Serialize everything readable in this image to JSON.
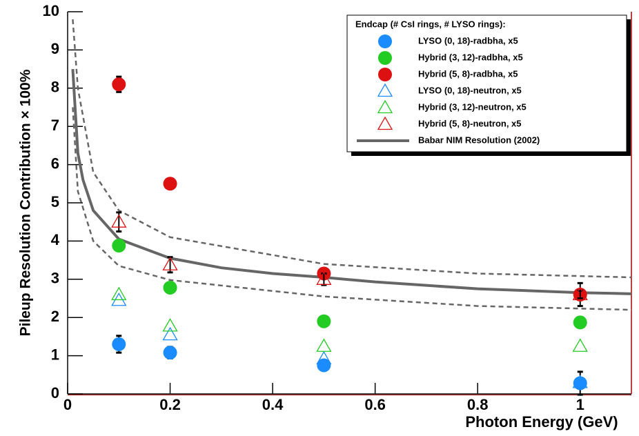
{
  "chart_data": {
    "type": "scatter",
    "x_label": "Photon Energy (GeV)",
    "y_label": "Pileup Resolution Contribution × 100%",
    "legend_title": "Endcap (# CsI rings, # LYSO rings):",
    "legend_position": "upper right",
    "x": [
      0.1,
      0.2,
      0.5,
      1
    ],
    "xlim": [
      0,
      1.1
    ],
    "xticks": [
      0,
      0.2,
      0.4,
      0.6,
      0.8,
      1
    ],
    "ylim": [
      0,
      10
    ],
    "yticks": [
      0,
      1,
      2,
      3,
      4,
      5,
      6,
      7,
      8,
      9,
      10
    ],
    "series": [
      {
        "name": "LYSO (0, 18)-radbha, x5",
        "color": "#1a8cff",
        "marker": "circle",
        "values": [
          1.3,
          1.08,
          0.75,
          0.28
        ],
        "errors": [
          0.22,
          0.15,
          0.1,
          0.3
        ]
      },
      {
        "name": "Hybrid (3, 12)-radbha, x5",
        "color": "#22cc22",
        "marker": "circle",
        "values": [
          3.88,
          2.78,
          1.9,
          1.87
        ],
        "errors": [
          0.1,
          0.1,
          0.1,
          0.1
        ]
      },
      {
        "name": "Hybrid (5, 8)-radbha, x5",
        "color": "#dd1111",
        "marker": "circle",
        "values": [
          8.1,
          5.5,
          3.15,
          2.6
        ],
        "errors": [
          0.2,
          0.1,
          0.1,
          0.3
        ]
      },
      {
        "name": "LYSO (0, 18)-neutron, x5",
        "color": "#1a8cff",
        "marker": "triangle",
        "values": [
          2.45,
          1.55,
          0.92,
          0.3
        ]
      },
      {
        "name": "Hybrid (3, 12)-neutron, x5",
        "color": "#22cc22",
        "marker": "triangle",
        "values": [
          2.6,
          1.78,
          1.25,
          1.25
        ]
      },
      {
        "name": "Hybrid (5, 8)-neutron, x5",
        "color": "#dd1111",
        "marker": "triangle",
        "values": [
          4.5,
          3.38,
          3.0,
          2.6
        ],
        "errors": [
          0.25,
          0.2,
          0.15,
          0.1
        ]
      },
      {
        "name": "Babar NIM Resolution (2002)",
        "color": "#666666",
        "style": "solid",
        "x": [
          0.01,
          0.02,
          0.03,
          0.05,
          0.1,
          0.2,
          0.3,
          0.4,
          0.5,
          0.6,
          0.8,
          1.0,
          1.1
        ],
        "values": [
          8.5,
          6.3,
          5.6,
          4.8,
          4.05,
          3.55,
          3.3,
          3.15,
          3.05,
          2.93,
          2.75,
          2.65,
          2.62
        ]
      },
      {
        "color": "#666666",
        "style": "dashed",
        "x": [
          0.01,
          0.02,
          0.05,
          0.1,
          0.2,
          0.5,
          0.8,
          1.1
        ],
        "values": [
          9.8,
          8.0,
          5.8,
          4.8,
          4.1,
          3.4,
          3.15,
          3.05
        ]
      },
      {
        "color": "#666666",
        "style": "dashed",
        "x": [
          0.01,
          0.02,
          0.05,
          0.1,
          0.2,
          0.5,
          0.8,
          1.1
        ],
        "values": [
          7.5,
          5.3,
          4.0,
          3.35,
          2.98,
          2.55,
          2.3,
          2.2
        ]
      }
    ]
  }
}
